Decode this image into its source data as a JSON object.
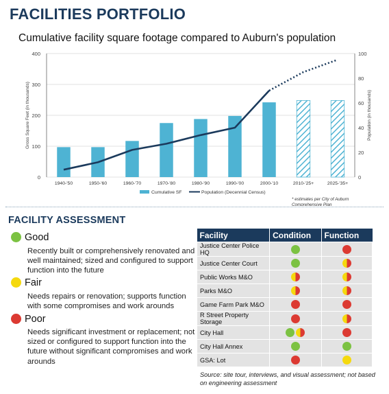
{
  "page_title": "FACILITIES PORTFOLIO",
  "chart_data": {
    "type": "bar+line",
    "title": "Cumulative facility square footage compared to Auburn's population",
    "categories": [
      "1940-'50",
      "1950-'60",
      "1960-'70",
      "1970-'80",
      "1980-'90",
      "1990-'00",
      "2000-'10",
      "2010-'25+",
      "2025-'35+"
    ],
    "series": [
      {
        "name": "Cumulative SF",
        "type": "bar",
        "axis": "left",
        "values": [
          97,
          97,
          117,
          175,
          188,
          198,
          242,
          248,
          248
        ],
        "estimated": [
          false,
          false,
          false,
          false,
          false,
          false,
          false,
          true,
          true
        ]
      },
      {
        "name": "Population (Decennial Census)",
        "type": "line",
        "axis": "right",
        "values": [
          6,
          12,
          22,
          27,
          34,
          40,
          70,
          85,
          95
        ],
        "estimated_from_index": 7
      }
    ],
    "ylabel": "Gross Square Feet (in thousands)",
    "y2label": "Population (in thousands)",
    "ylim": [
      0,
      400
    ],
    "y2lim": [
      0,
      100
    ],
    "yticks": [
      0,
      100,
      200,
      300,
      400
    ],
    "y2ticks": [
      0,
      20,
      40,
      60,
      80,
      100
    ],
    "grid": true,
    "legend_position": "bottom",
    "annotation": "* estimates per City of Auburn Comprehensive Plan",
    "colors": {
      "bar": "#4eb3d3",
      "line": "#1b3a5c",
      "grid": "#d9d9d9",
      "axis": "#666666"
    }
  },
  "assessment": {
    "title": "FACILITY ASSESSMENT",
    "levels": [
      {
        "name": "Good",
        "color": "#7cc242",
        "description": "Recently built or comprehensively renovated and well maintained; sized and configured to support function into the future"
      },
      {
        "name": "Fair",
        "color": "#f5d90e",
        "description": "Needs repairs or renovation; supports function with some compromises and work arounds"
      },
      {
        "name": "Poor",
        "color": "#dc3a32",
        "description": "Needs significant investment or replacement; not sized or configured to support function into the future without significant compromises and work arounds"
      }
    ]
  },
  "table": {
    "headers": [
      "Facility",
      "Condition",
      "Function"
    ],
    "rows": [
      {
        "facility": "Justice Center Police HQ",
        "condition": [
          "good"
        ],
        "function": [
          "poor"
        ]
      },
      {
        "facility": "Justice Center Court",
        "condition": [
          "good"
        ],
        "function": [
          "fair-poor"
        ]
      },
      {
        "facility": "Public Works M&O",
        "condition": [
          "fair-poor"
        ],
        "function": [
          "fair-poor"
        ]
      },
      {
        "facility": "Parks M&O",
        "condition": [
          "fair-poor"
        ],
        "function": [
          "fair-poor"
        ]
      },
      {
        "facility": "Game Farm Park M&O",
        "condition": [
          "poor"
        ],
        "function": [
          "poor"
        ]
      },
      {
        "facility": "R Street Property Storage",
        "condition": [
          "poor"
        ],
        "function": [
          "fair-poor"
        ]
      },
      {
        "facility": "City Hall",
        "condition": [
          "good",
          "fair-poor"
        ],
        "function": [
          "poor"
        ]
      },
      {
        "facility": "City Hall Annex",
        "condition": [
          "good"
        ],
        "function": [
          "good"
        ]
      },
      {
        "facility": "GSA: Lot",
        "condition": [
          "poor"
        ],
        "function": [
          "fair"
        ]
      }
    ]
  },
  "source_note": "Source: site tour, interviews, and visual assessment; not based on engineering assessment",
  "status_colors": {
    "good": "#7cc242",
    "fair": "#f5d90e",
    "poor": "#dc3a32"
  }
}
